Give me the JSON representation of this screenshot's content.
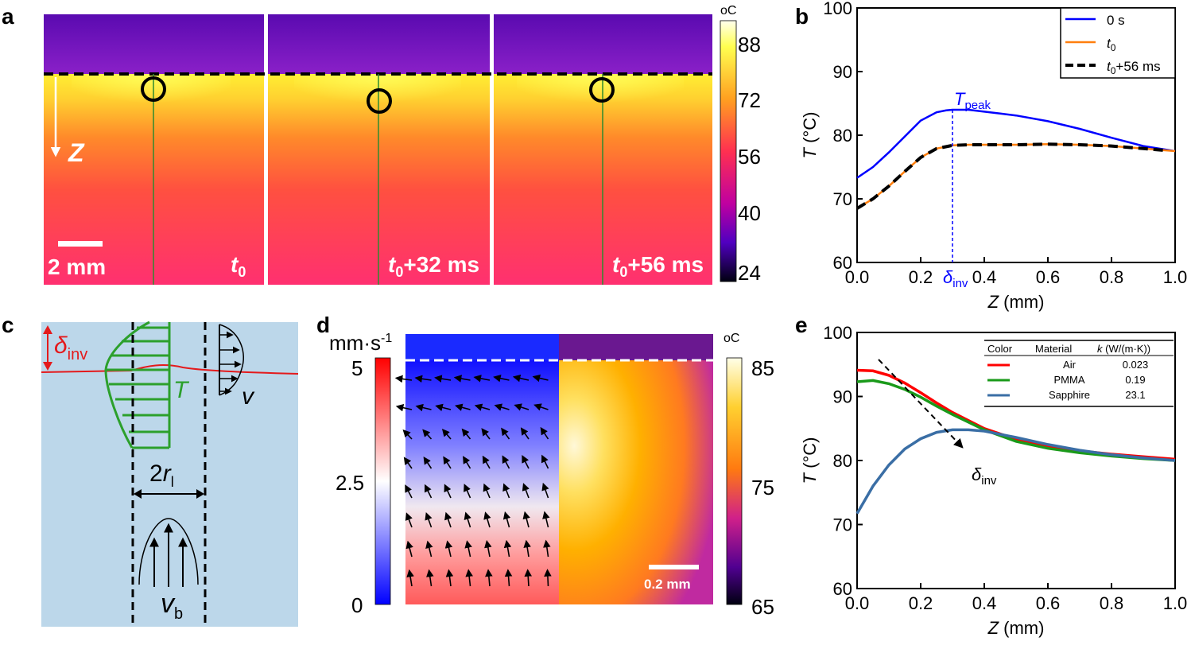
{
  "panel_labels": {
    "a": "a",
    "b": "b",
    "c": "c",
    "d": "d",
    "e": "e"
  },
  "panel_a": {
    "colorbar_unit": "oC",
    "colorbar_ticks": [
      "88",
      "72",
      "56",
      "40",
      "24"
    ],
    "scalebar_label": "2 mm",
    "z_label": "Z",
    "frames": [
      {
        "time_main": "t",
        "time_sub": "0",
        "time_extra": ""
      },
      {
        "time_main": "t",
        "time_sub": "0",
        "time_extra": "+32 ms"
      },
      {
        "time_main": "t",
        "time_sub": "0",
        "time_extra": "+56 ms"
      }
    ],
    "colors": {
      "hot": "#ffff33",
      "mid": "#ff6030",
      "cool": "#ff3a6a",
      "air": "#6a10c8"
    }
  },
  "panel_c": {
    "delta_main": "δ",
    "delta_sub": "inv",
    "T_label": "T",
    "v_label": "v",
    "r_prefix": "2",
    "r_main": "r",
    "r_sub": "l",
    "vb_main": "v",
    "vb_sub": "b",
    "colors": {
      "bg": "#bcd7ea",
      "interface": "#e41a1c",
      "profile": "#2ca02c"
    }
  },
  "panel_d": {
    "vel_unit_main": "mm·s",
    "vel_unit_sup": "-1",
    "vel_ticks": [
      "5",
      "2.5",
      "0"
    ],
    "temp_unit": "oC",
    "temp_ticks": [
      "85",
      "75",
      "65"
    ],
    "scalebar_label": "0.2 mm"
  },
  "chart_data": [
    {
      "id": "b",
      "type": "line",
      "xlabel_main": "Z",
      "xlabel_rest": " (mm)",
      "ylabel_main": "T",
      "ylabel_rest": " (°C)",
      "xlim": [
        0,
        1.0
      ],
      "ylim": [
        60,
        100
      ],
      "xticks": [
        "0.0",
        "0.2",
        "0.4",
        "0.6",
        "0.8",
        "1.0"
      ],
      "yticks": [
        "60",
        "70",
        "80",
        "90",
        "100"
      ],
      "annotations": {
        "tpeak_main": "T",
        "tpeak_sub": "peak",
        "delta_main": "δ",
        "delta_sub": "inv",
        "delta_x": 0.3
      },
      "legend": [
        {
          "main": "0 s",
          "sub": "",
          "extra": ""
        },
        {
          "main": "t",
          "sub": "0",
          "extra": ""
        },
        {
          "main": "t",
          "sub": "0",
          "extra": "+56 ms"
        }
      ],
      "series": [
        {
          "name": "0 s",
          "color": "#0000ff",
          "dash": false,
          "x": [
            0,
            0.05,
            0.1,
            0.15,
            0.2,
            0.25,
            0.28,
            0.3,
            0.35,
            0.4,
            0.45,
            0.5,
            0.6,
            0.7,
            0.8,
            0.9,
            1.0
          ],
          "y": [
            73.3,
            75,
            77.3,
            79.8,
            82.3,
            83.6,
            83.9,
            84,
            84,
            83.7,
            83.4,
            83.1,
            82.2,
            81,
            79.6,
            78.3,
            77.5
          ]
        },
        {
          "name": "t0",
          "color": "#ff7f0e",
          "dash": false,
          "x": [
            0,
            0.05,
            0.1,
            0.15,
            0.2,
            0.25,
            0.3,
            0.35,
            0.4,
            0.5,
            0.6,
            0.7,
            0.8,
            0.9,
            1.0
          ],
          "y": [
            68.5,
            70,
            72,
            74.3,
            76.5,
            77.9,
            78.4,
            78.5,
            78.5,
            78.5,
            78.6,
            78.5,
            78.3,
            77.9,
            77.5
          ]
        },
        {
          "name": "t0+56 ms",
          "color": "#000000",
          "dash": true,
          "x": [
            0,
            0.05,
            0.1,
            0.15,
            0.2,
            0.25,
            0.3,
            0.35,
            0.4,
            0.5,
            0.6,
            0.7,
            0.8,
            0.9,
            0.97
          ],
          "y": [
            68.5,
            70,
            72,
            74.3,
            76.5,
            77.9,
            78.4,
            78.5,
            78.5,
            78.5,
            78.6,
            78.5,
            78.3,
            77.9,
            77.6
          ]
        }
      ]
    },
    {
      "id": "e",
      "type": "line",
      "xlabel_main": "Z",
      "xlabel_rest": " (mm)",
      "ylabel_main": "T",
      "ylabel_rest": " (°C)",
      "xlim": [
        0,
        1.0
      ],
      "ylim": [
        60,
        100
      ],
      "xticks": [
        "0.0",
        "0.2",
        "0.4",
        "0.6",
        "0.8",
        "1.0"
      ],
      "yticks": [
        "60",
        "70",
        "80",
        "90",
        "100"
      ],
      "annotations": {
        "delta_main": "δ",
        "delta_sub": "inv"
      },
      "table": {
        "headers": [
          "Color",
          "Material",
          "k (W/(m·K))"
        ],
        "rows": [
          {
            "material": "Air",
            "k": "0.023",
            "color": "#ff0000"
          },
          {
            "material": "PMMA",
            "k": "0.19",
            "color": "#1a9a1a"
          },
          {
            "material": "Sapphire",
            "k": "23.1",
            "color": "#3a6ea5"
          }
        ]
      },
      "series": [
        {
          "name": "Air",
          "color": "#ff0000",
          "x": [
            0,
            0.05,
            0.1,
            0.15,
            0.2,
            0.25,
            0.3,
            0.4,
            0.5,
            0.6,
            0.7,
            0.8,
            0.9,
            1.0
          ],
          "y": [
            94.1,
            94,
            93.3,
            92.1,
            90.6,
            89,
            87.5,
            85,
            83.3,
            82.2,
            81.5,
            81,
            80.6,
            80.2
          ]
        },
        {
          "name": "PMMA",
          "color": "#1a9a1a",
          "x": [
            0,
            0.05,
            0.1,
            0.15,
            0.2,
            0.25,
            0.3,
            0.4,
            0.5,
            0.6,
            0.7,
            0.8,
            0.9,
            1.0
          ],
          "y": [
            92.3,
            92.5,
            92,
            91.1,
            89.9,
            88.5,
            87.2,
            84.8,
            83,
            81.9,
            81.2,
            80.7,
            80.3,
            80
          ]
        },
        {
          "name": "Sapphire",
          "color": "#3a6ea5",
          "x": [
            0,
            0.05,
            0.1,
            0.15,
            0.2,
            0.25,
            0.3,
            0.35,
            0.4,
            0.5,
            0.6,
            0.7,
            0.8,
            0.9,
            1.0
          ],
          "y": [
            71.7,
            76,
            79.3,
            81.8,
            83.4,
            84.4,
            84.8,
            84.8,
            84.6,
            83.6,
            82.5,
            81.6,
            80.9,
            80.4,
            80
          ]
        }
      ]
    }
  ]
}
